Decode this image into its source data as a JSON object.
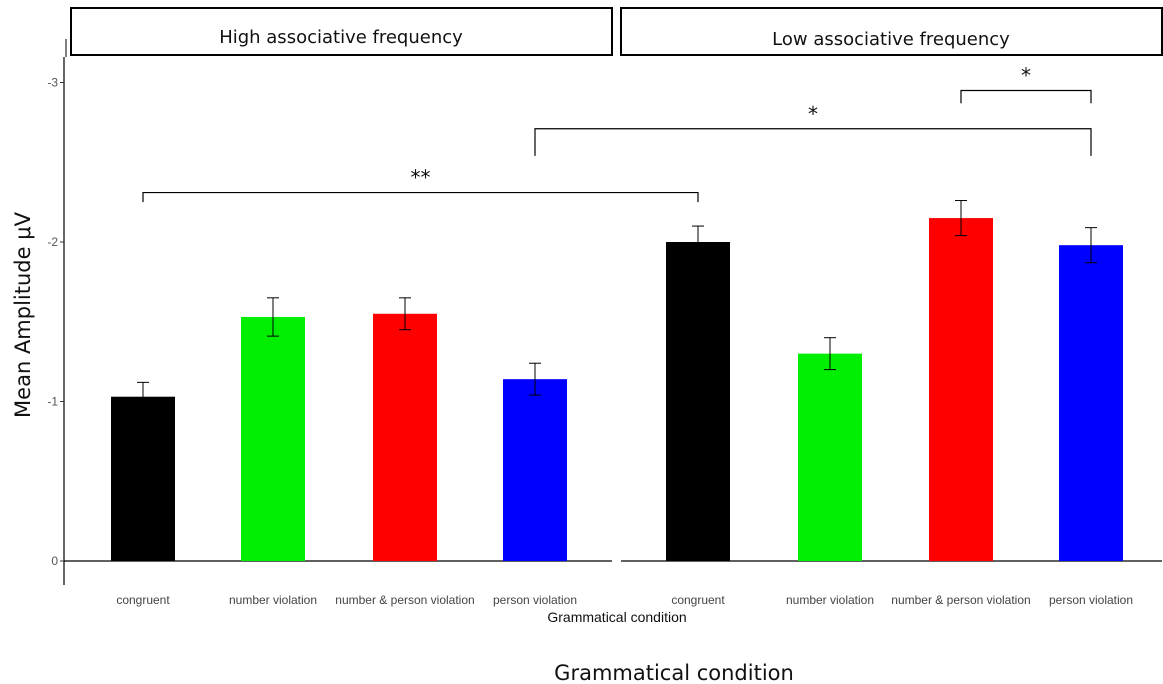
{
  "chart_data": {
    "type": "bar",
    "ylabel": "Mean Amplitude μV",
    "xlabel": "Grammatical condition",
    "xlabel_outer": "Grammatical condition",
    "y_axis_reversed": true,
    "ylim": [
      0,
      -3
    ],
    "yticks": [
      {
        "value": 0,
        "label": "0"
      },
      {
        "value": -1,
        "label": "-1"
      },
      {
        "value": -2,
        "label": "-2"
      },
      {
        "value": -3,
        "label": "-3"
      }
    ],
    "categories": [
      "congruent",
      "number violation",
      "number & person violation",
      "person violation"
    ],
    "colors": [
      "#000000",
      "#00ee00",
      "#ff0000",
      "#0000ff"
    ],
    "panels": [
      {
        "title": "High associative frequency",
        "values": [
          -1.03,
          -1.53,
          -1.55,
          -1.14
        ],
        "errors": [
          0.09,
          0.12,
          0.1,
          0.1
        ]
      },
      {
        "title": "Low associative frequency",
        "values": [
          -2.0,
          -1.3,
          -2.15,
          -1.98
        ],
        "errors": [
          0.1,
          0.1,
          0.11,
          0.11
        ]
      }
    ],
    "significance": [
      {
        "label": "**",
        "from": {
          "panel": 0,
          "cat": 0
        },
        "to": {
          "panel": 1,
          "cat": 0
        },
        "y": -2.31,
        "drop": 0.06
      },
      {
        "label": "*",
        "from": {
          "panel": 0,
          "cat": 3
        },
        "to": {
          "panel": 1,
          "cat": 3
        },
        "y": -2.71,
        "drop": 0.17
      },
      {
        "label": "*",
        "from": {
          "panel": 1,
          "cat": 2
        },
        "to": {
          "panel": 1,
          "cat": 3
        },
        "y": -2.95,
        "drop": 0.08
      }
    ]
  }
}
